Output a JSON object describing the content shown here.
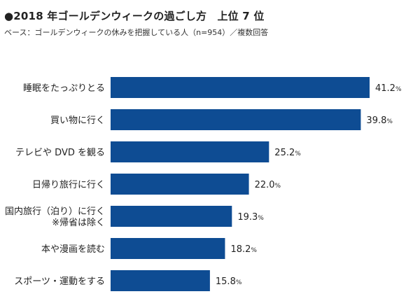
{
  "title": "●2018 年ゴールデンウィークの過ごし方　上位 7 位",
  "subtitle": "ベース：ゴールデンウィークの休みを把握している人（n=954）／複数回答",
  "colors": {
    "bar": "#0e4c93",
    "text": "#222222"
  },
  "chart_data": {
    "type": "bar",
    "orientation": "horizontal",
    "unit": "%",
    "xlim": [
      0,
      41.2
    ],
    "grid": false,
    "legend": "none",
    "categories": [
      [
        "睡眠をたっぷりとる"
      ],
      [
        "買い物に行く"
      ],
      [
        "テレビや DVD を観る"
      ],
      [
        "日帰り旅行に行く"
      ],
      [
        "国内旅行（泊り）に行く",
        "※帰省は除く"
      ],
      [
        "本や漫画を読む"
      ],
      [
        "スポーツ・運動をする"
      ]
    ],
    "values": [
      41.2,
      39.8,
      25.2,
      22.0,
      19.3,
      18.2,
      15.8
    ],
    "value_labels": [
      "41.2",
      "39.8",
      "25.2",
      "22.0",
      "19.3",
      "18.2",
      "15.8"
    ]
  }
}
